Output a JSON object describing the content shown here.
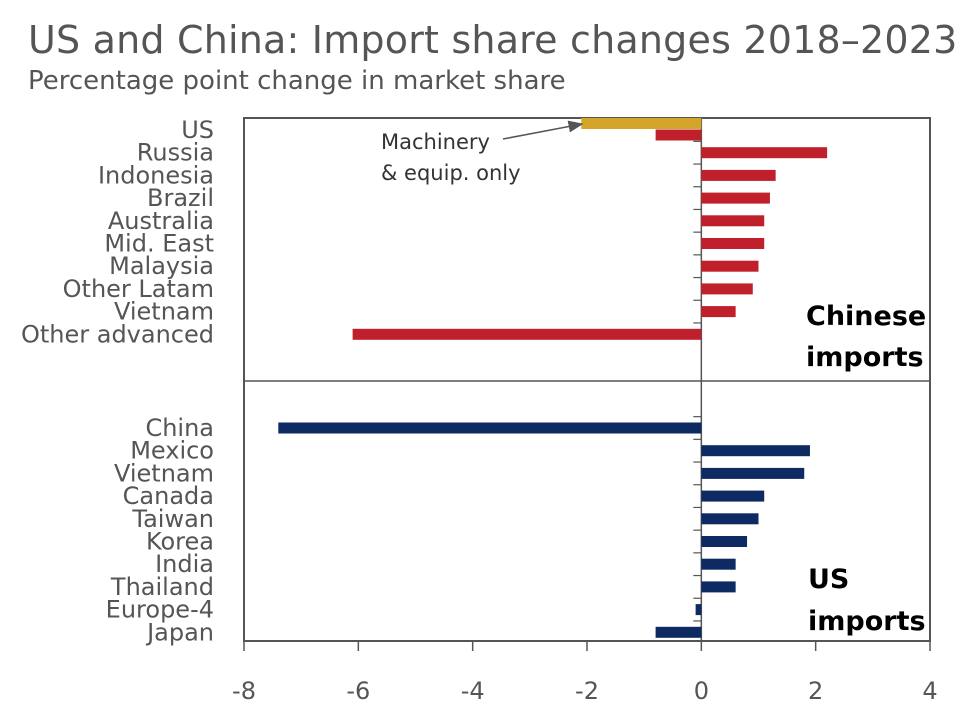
{
  "title": "US and China: Import share changes 2018–2023",
  "subtitle": "Percentage point change in market share",
  "colors": {
    "chinese_imports": "#C0202B",
    "us_imports": "#0E2A63",
    "machinery": "#D4A52A",
    "axis": "#555555"
  },
  "chart_data": {
    "type": "bar",
    "orientation": "horizontal",
    "xlim": [
      -8,
      4
    ],
    "xticks": [
      "-8",
      "-6",
      "-4",
      "-2",
      "0",
      "2",
      "4"
    ],
    "panels": [
      {
        "label": [
          "Chinese",
          "imports"
        ],
        "categories": [
          "US",
          "Russia",
          "Indonesia",
          "Brazil",
          "Australia",
          "Mid. East",
          "Malaysia",
          "Other Latam",
          "Vietnam",
          "Other advanced"
        ],
        "values": [
          -0.8,
          2.2,
          1.3,
          1.2,
          1.1,
          1.1,
          1.0,
          0.9,
          0.6,
          -6.1
        ],
        "extra": {
          "category": "US",
          "value": -2.1,
          "note": [
            "Machinery",
            "& equip. only"
          ]
        }
      },
      {
        "label": [
          "US",
          "imports"
        ],
        "categories": [
          "China",
          "Mexico",
          "Vietnam",
          "Canada",
          "Taiwan",
          "Korea",
          "India",
          "Thailand",
          "Europe-4",
          "Japan"
        ],
        "values": [
          -7.4,
          1.9,
          1.8,
          1.1,
          1.0,
          0.8,
          0.6,
          0.6,
          -0.1,
          -0.8
        ]
      }
    ]
  }
}
